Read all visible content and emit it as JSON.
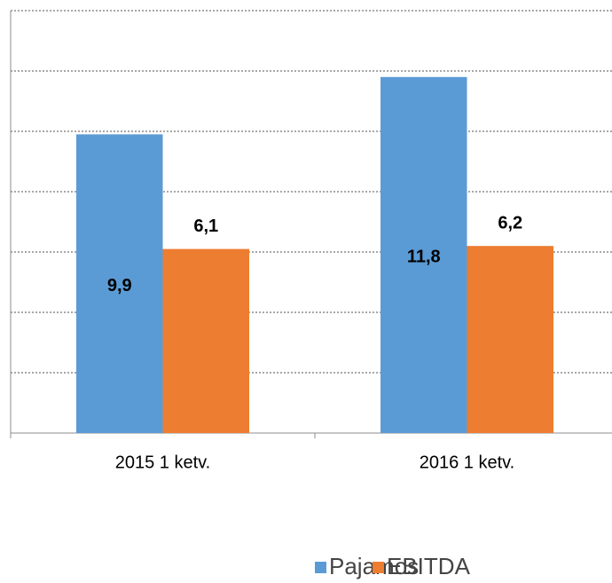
{
  "chart_data": {
    "type": "bar",
    "categories": [
      "2015 1 ketv.",
      "2016 1 ketv."
    ],
    "series": [
      {
        "name": "Pajamos",
        "color": "#5b9bd5",
        "values": [
          9.9,
          11.8
        ],
        "value_labels": [
          "9,9",
          "11,8"
        ]
      },
      {
        "name": "EBITDA",
        "color": "#ed7d31",
        "values": [
          6.1,
          6.2
        ],
        "value_labels": [
          "6,1",
          "6,2"
        ]
      }
    ],
    "ylim": [
      0,
      14
    ],
    "yticks": [
      0,
      2,
      4,
      6,
      8,
      10,
      12,
      14
    ],
    "grid": true,
    "legend": "bottom"
  }
}
